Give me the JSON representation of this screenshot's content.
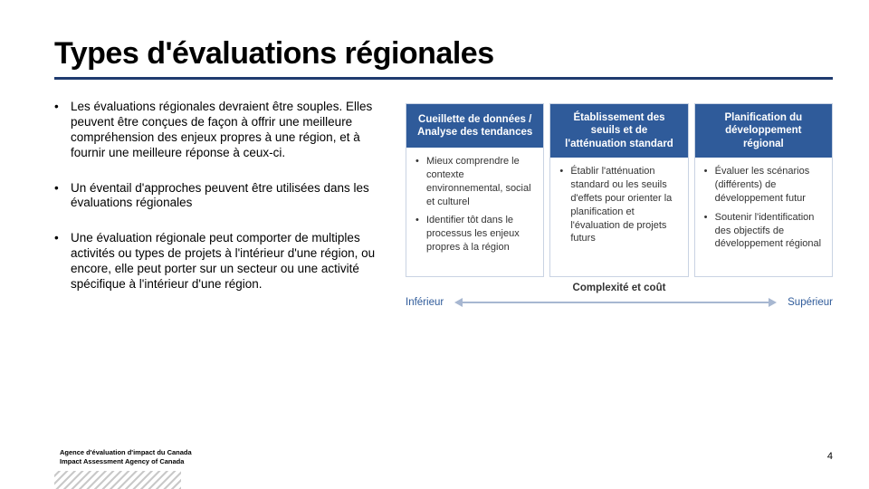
{
  "title": "Types d'évaluations régionales",
  "bullets": [
    "Les évaluations régionales devraient être souples. Elles peuvent être conçues de façon à offrir une meilleure compréhension des enjeux propres à une région, et à fournir une meilleure réponse à ceux-ci.",
    "Un éventail d'approches peuvent être utilisées dans les évaluations régionales",
    "Une évaluation régionale peut comporter de multiples activités ou types de projets à l'intérieur d'une région, ou encore, elle peut porter sur un secteur ou une activité spécifique à l'intérieur d'une région."
  ],
  "columns": [
    {
      "head": "Cueillette de données / Analyse des tendances",
      "items": [
        "Mieux comprendre le contexte environnemental, social et culturel",
        "Identifier tôt dans le processus les enjeux propres à la région"
      ]
    },
    {
      "head": "Établissement des seuils et de l'atténuation standard",
      "items": [
        "Établir l'atténuation standard ou les seuils d'effets pour orienter la planification et l'évaluation de projets futurs"
      ]
    },
    {
      "head": "Planification du développement régional",
      "items": [
        "Évaluer les scénarios (différents) de développement futur",
        "Soutenir l'identification des objectifs de développement régional"
      ]
    }
  ],
  "scale": {
    "left": "Inférieur",
    "mid": "Complexité et coût",
    "right": "Supérieur"
  },
  "footer_line1": "Agence d'évaluation d'impact du Canada",
  "footer_line2": "Impact Assessment Agency of Canada",
  "page": "4",
  "colors": {
    "underline": "#1f3b6f",
    "col_head_bg": "#2f5b9a",
    "col_border": "#c9d3e3",
    "arrow": "#a7b7d1"
  }
}
